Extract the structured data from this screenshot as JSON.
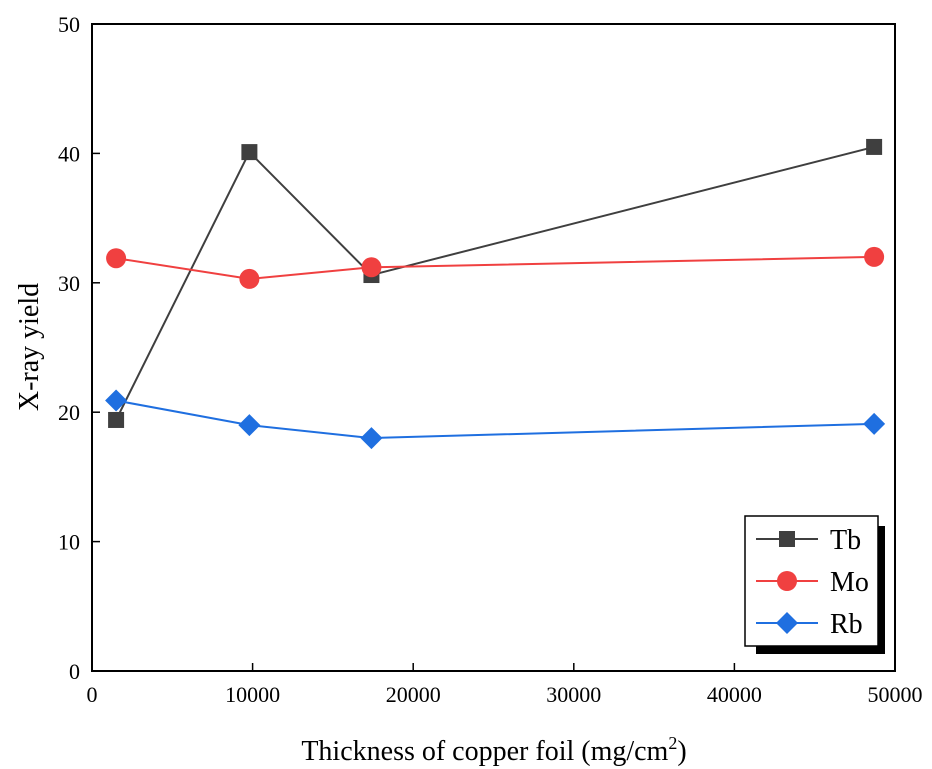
{
  "chart_data": {
    "type": "line",
    "title": "",
    "xlabel": "Thickness of copper foil (mg/cm",
    "xlabel_superscript": "2",
    "xlabel_suffix": ")",
    "ylabel": "X-ray yield",
    "xlim": [
      0,
      50000
    ],
    "ylim": [
      0,
      50
    ],
    "xticks": [
      0,
      10000,
      20000,
      30000,
      40000,
      50000
    ],
    "yticks": [
      0,
      10,
      20,
      30,
      40,
      50
    ],
    "grid": false,
    "legend_position": "bottom-right",
    "series": [
      {
        "name": "Tb",
        "color": "#3f3f3f",
        "marker": "square",
        "points": [
          [
            1500,
            19.4
          ],
          [
            9800,
            40.1
          ],
          [
            17400,
            30.6
          ],
          [
            48700,
            40.5
          ]
        ]
      },
      {
        "name": "Mo",
        "color": "#f04040",
        "marker": "circle",
        "points": [
          [
            1500,
            31.9
          ],
          [
            9800,
            30.3
          ],
          [
            17400,
            31.2
          ],
          [
            48700,
            32.0
          ]
        ]
      },
      {
        "name": "Rb",
        "color": "#1f6fe0",
        "marker": "diamond",
        "points": [
          [
            1500,
            20.9
          ],
          [
            9800,
            19.0
          ],
          [
            17400,
            18.0
          ],
          [
            48700,
            19.1
          ]
        ]
      }
    ]
  }
}
